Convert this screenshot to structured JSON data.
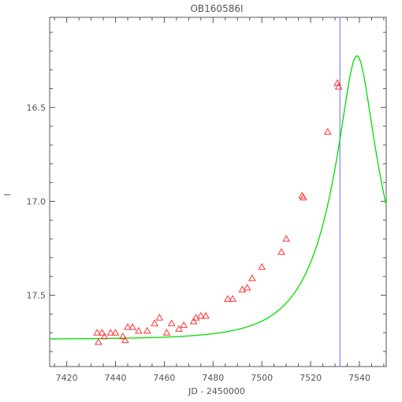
{
  "chart_data": {
    "type": "scatter",
    "title": "OB160586I",
    "xlabel": "JD - 2450000",
    "ylabel": "I",
    "xlim": [
      7413,
      7551
    ],
    "ylim": [
      17.88,
      16.02
    ],
    "y_inverted": true,
    "x_ticks": [
      7420,
      7440,
      7460,
      7480,
      7500,
      7520,
      7540
    ],
    "x_tick_labels": [
      "7420",
      "7440",
      "7460",
      "7480",
      "7500",
      "7520",
      "7540"
    ],
    "y_ticks": [
      16.5,
      17.0,
      17.5
    ],
    "y_tick_labels": [
      "16.5",
      "17.0",
      "17.5"
    ],
    "grid": false,
    "vertical_line_x": 7532,
    "colors": {
      "points": "#ff3333",
      "model_curve": "#00dd00",
      "vertical_line": "#6666ff",
      "axes": "#555555"
    },
    "series": [
      {
        "type": "scatter",
        "marker": "triangle-open",
        "points": [
          [
            7432.5,
            17.7
          ],
          [
            7433.0,
            17.75
          ],
          [
            7434.5,
            17.7
          ],
          [
            7435.5,
            17.72
          ],
          [
            7438.0,
            17.7
          ],
          [
            7440.0,
            17.7
          ],
          [
            7443.0,
            17.72
          ],
          [
            7444.0,
            17.74
          ],
          [
            7445.0,
            17.67
          ],
          [
            7447.0,
            17.67
          ],
          [
            7449.5,
            17.69
          ],
          [
            7453.0,
            17.69
          ],
          [
            7456.0,
            17.65
          ],
          [
            7458.0,
            17.62
          ],
          [
            7461.0,
            17.7
          ],
          [
            7463.0,
            17.65
          ],
          [
            7466.0,
            17.68
          ],
          [
            7468.0,
            17.66
          ],
          [
            7472.0,
            17.64
          ],
          [
            7473.0,
            17.62
          ],
          [
            7475.0,
            17.61
          ],
          [
            7477.0,
            17.61
          ],
          [
            7486.0,
            17.52
          ],
          [
            7488.0,
            17.52
          ],
          [
            7492.0,
            17.47
          ],
          [
            7494.0,
            17.46
          ],
          [
            7496.0,
            17.41
          ],
          [
            7500.0,
            17.35
          ],
          [
            7508.0,
            17.27
          ],
          [
            7510.0,
            17.2
          ],
          [
            7516.5,
            16.97
          ],
          [
            7517.0,
            16.98
          ],
          [
            7527.0,
            16.63
          ],
          [
            7531.0,
            16.37
          ],
          [
            7531.5,
            16.39
          ]
        ]
      },
      {
        "type": "line",
        "model": "paczynski",
        "params": {
          "t0": 7539.0,
          "tE": 23.0,
          "u0": 0.255,
          "I_base": 17.735
        }
      }
    ]
  }
}
